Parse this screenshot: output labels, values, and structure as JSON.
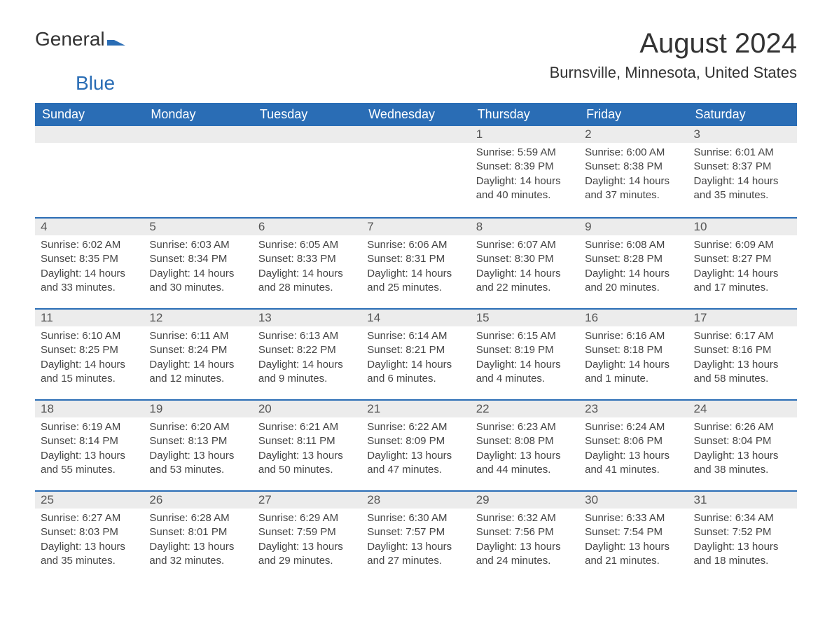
{
  "logo": {
    "general": "General",
    "blue": "Blue"
  },
  "title": "August 2024",
  "location": "Burnsville, Minnesota, United States",
  "colors": {
    "header_bg": "#2a6db5",
    "header_text": "#ffffff",
    "day_bg": "#ececec",
    "border": "#2a6db5",
    "text": "#444444"
  },
  "weekdays": [
    "Sunday",
    "Monday",
    "Tuesday",
    "Wednesday",
    "Thursday",
    "Friday",
    "Saturday"
  ],
  "weeks": [
    [
      null,
      null,
      null,
      null,
      {
        "day": "1",
        "sunrise": "Sunrise: 5:59 AM",
        "sunset": "Sunset: 8:39 PM",
        "daylight": "Daylight: 14 hours and 40 minutes."
      },
      {
        "day": "2",
        "sunrise": "Sunrise: 6:00 AM",
        "sunset": "Sunset: 8:38 PM",
        "daylight": "Daylight: 14 hours and 37 minutes."
      },
      {
        "day": "3",
        "sunrise": "Sunrise: 6:01 AM",
        "sunset": "Sunset: 8:37 PM",
        "daylight": "Daylight: 14 hours and 35 minutes."
      }
    ],
    [
      {
        "day": "4",
        "sunrise": "Sunrise: 6:02 AM",
        "sunset": "Sunset: 8:35 PM",
        "daylight": "Daylight: 14 hours and 33 minutes."
      },
      {
        "day": "5",
        "sunrise": "Sunrise: 6:03 AM",
        "sunset": "Sunset: 8:34 PM",
        "daylight": "Daylight: 14 hours and 30 minutes."
      },
      {
        "day": "6",
        "sunrise": "Sunrise: 6:05 AM",
        "sunset": "Sunset: 8:33 PM",
        "daylight": "Daylight: 14 hours and 28 minutes."
      },
      {
        "day": "7",
        "sunrise": "Sunrise: 6:06 AM",
        "sunset": "Sunset: 8:31 PM",
        "daylight": "Daylight: 14 hours and 25 minutes."
      },
      {
        "day": "8",
        "sunrise": "Sunrise: 6:07 AM",
        "sunset": "Sunset: 8:30 PM",
        "daylight": "Daylight: 14 hours and 22 minutes."
      },
      {
        "day": "9",
        "sunrise": "Sunrise: 6:08 AM",
        "sunset": "Sunset: 8:28 PM",
        "daylight": "Daylight: 14 hours and 20 minutes."
      },
      {
        "day": "10",
        "sunrise": "Sunrise: 6:09 AM",
        "sunset": "Sunset: 8:27 PM",
        "daylight": "Daylight: 14 hours and 17 minutes."
      }
    ],
    [
      {
        "day": "11",
        "sunrise": "Sunrise: 6:10 AM",
        "sunset": "Sunset: 8:25 PM",
        "daylight": "Daylight: 14 hours and 15 minutes."
      },
      {
        "day": "12",
        "sunrise": "Sunrise: 6:11 AM",
        "sunset": "Sunset: 8:24 PM",
        "daylight": "Daylight: 14 hours and 12 minutes."
      },
      {
        "day": "13",
        "sunrise": "Sunrise: 6:13 AM",
        "sunset": "Sunset: 8:22 PM",
        "daylight": "Daylight: 14 hours and 9 minutes."
      },
      {
        "day": "14",
        "sunrise": "Sunrise: 6:14 AM",
        "sunset": "Sunset: 8:21 PM",
        "daylight": "Daylight: 14 hours and 6 minutes."
      },
      {
        "day": "15",
        "sunrise": "Sunrise: 6:15 AM",
        "sunset": "Sunset: 8:19 PM",
        "daylight": "Daylight: 14 hours and 4 minutes."
      },
      {
        "day": "16",
        "sunrise": "Sunrise: 6:16 AM",
        "sunset": "Sunset: 8:18 PM",
        "daylight": "Daylight: 14 hours and 1 minute."
      },
      {
        "day": "17",
        "sunrise": "Sunrise: 6:17 AM",
        "sunset": "Sunset: 8:16 PM",
        "daylight": "Daylight: 13 hours and 58 minutes."
      }
    ],
    [
      {
        "day": "18",
        "sunrise": "Sunrise: 6:19 AM",
        "sunset": "Sunset: 8:14 PM",
        "daylight": "Daylight: 13 hours and 55 minutes."
      },
      {
        "day": "19",
        "sunrise": "Sunrise: 6:20 AM",
        "sunset": "Sunset: 8:13 PM",
        "daylight": "Daylight: 13 hours and 53 minutes."
      },
      {
        "day": "20",
        "sunrise": "Sunrise: 6:21 AM",
        "sunset": "Sunset: 8:11 PM",
        "daylight": "Daylight: 13 hours and 50 minutes."
      },
      {
        "day": "21",
        "sunrise": "Sunrise: 6:22 AM",
        "sunset": "Sunset: 8:09 PM",
        "daylight": "Daylight: 13 hours and 47 minutes."
      },
      {
        "day": "22",
        "sunrise": "Sunrise: 6:23 AM",
        "sunset": "Sunset: 8:08 PM",
        "daylight": "Daylight: 13 hours and 44 minutes."
      },
      {
        "day": "23",
        "sunrise": "Sunrise: 6:24 AM",
        "sunset": "Sunset: 8:06 PM",
        "daylight": "Daylight: 13 hours and 41 minutes."
      },
      {
        "day": "24",
        "sunrise": "Sunrise: 6:26 AM",
        "sunset": "Sunset: 8:04 PM",
        "daylight": "Daylight: 13 hours and 38 minutes."
      }
    ],
    [
      {
        "day": "25",
        "sunrise": "Sunrise: 6:27 AM",
        "sunset": "Sunset: 8:03 PM",
        "daylight": "Daylight: 13 hours and 35 minutes."
      },
      {
        "day": "26",
        "sunrise": "Sunrise: 6:28 AM",
        "sunset": "Sunset: 8:01 PM",
        "daylight": "Daylight: 13 hours and 32 minutes."
      },
      {
        "day": "27",
        "sunrise": "Sunrise: 6:29 AM",
        "sunset": "Sunset: 7:59 PM",
        "daylight": "Daylight: 13 hours and 29 minutes."
      },
      {
        "day": "28",
        "sunrise": "Sunrise: 6:30 AM",
        "sunset": "Sunset: 7:57 PM",
        "daylight": "Daylight: 13 hours and 27 minutes."
      },
      {
        "day": "29",
        "sunrise": "Sunrise: 6:32 AM",
        "sunset": "Sunset: 7:56 PM",
        "daylight": "Daylight: 13 hours and 24 minutes."
      },
      {
        "day": "30",
        "sunrise": "Sunrise: 6:33 AM",
        "sunset": "Sunset: 7:54 PM",
        "daylight": "Daylight: 13 hours and 21 minutes."
      },
      {
        "day": "31",
        "sunrise": "Sunrise: 6:34 AM",
        "sunset": "Sunset: 7:52 PM",
        "daylight": "Daylight: 13 hours and 18 minutes."
      }
    ]
  ]
}
